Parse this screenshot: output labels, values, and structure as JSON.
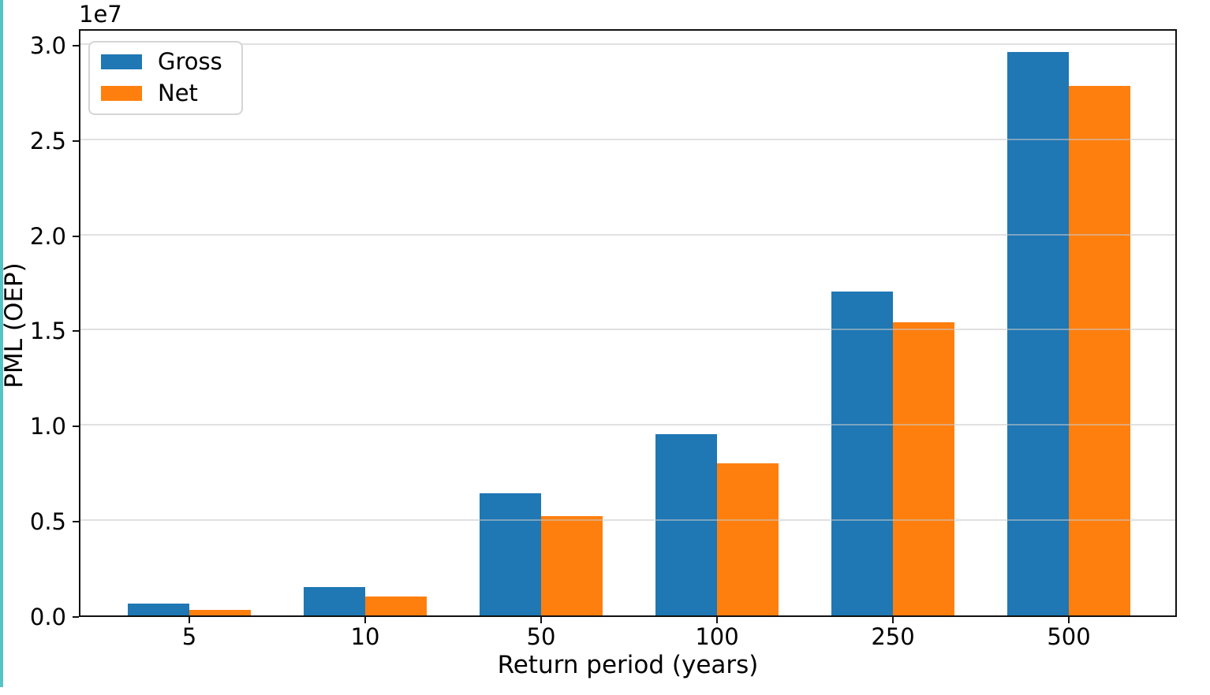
{
  "frame": {
    "accent_color": "#56c3c7",
    "background_color": "#ffffff"
  },
  "chart_data": {
    "type": "bar",
    "title": "",
    "xlabel": "Return period (years)",
    "ylabel": "PML (OEP)",
    "offset_label": "1e7",
    "categories": [
      "5",
      "10",
      "50",
      "100",
      "250",
      "500"
    ],
    "series": [
      {
        "name": "Gross",
        "color": "#1f77b4",
        "values": [
          600000,
          1500000,
          6400000,
          9500000,
          17000000,
          29600000
        ]
      },
      {
        "name": "Net",
        "color": "#ff7f0e",
        "values": [
          300000,
          1000000,
          5200000,
          8000000,
          15400000,
          27800000
        ]
      }
    ],
    "ylim": [
      0,
      30900000
    ],
    "yticks": [
      {
        "label": "0.0",
        "value": 0
      },
      {
        "label": "0.5",
        "value": 5000000
      },
      {
        "label": "1.0",
        "value": 10000000
      },
      {
        "label": "1.5",
        "value": 15000000
      },
      {
        "label": "2.0",
        "value": 20000000
      },
      {
        "label": "2.5",
        "value": 25000000
      },
      {
        "label": "3.0",
        "value": 30000000
      }
    ],
    "grid": true,
    "legend_position": "upper left",
    "gridline_color": "#e3e3e3",
    "axis_color": "#111111"
  }
}
